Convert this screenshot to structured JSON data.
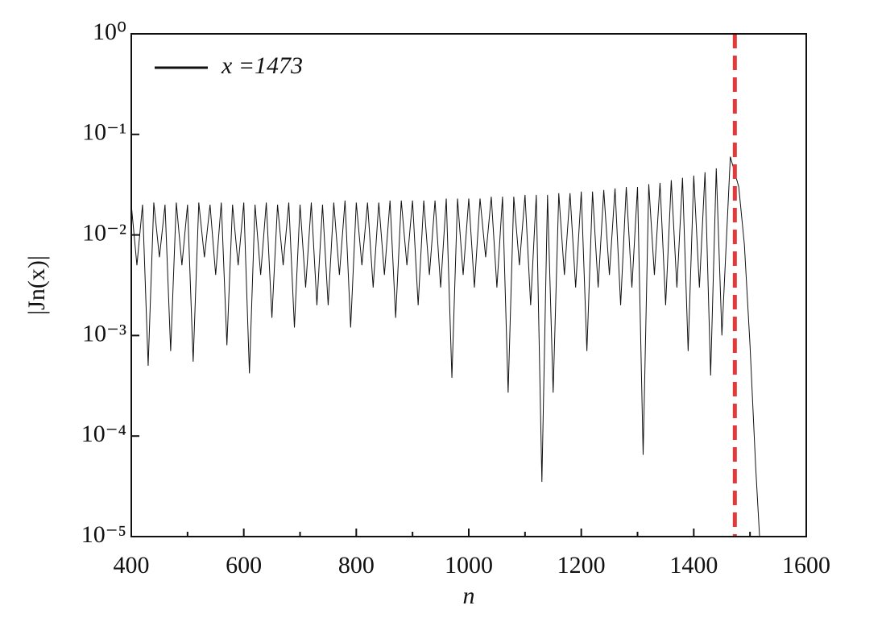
{
  "chart_data": {
    "type": "line",
    "log_y": true,
    "xlabel": "n",
    "ylabel": "|Jn(x)|",
    "xlim": [
      400,
      1600
    ],
    "xticks": [
      400,
      600,
      800,
      1000,
      1200,
      1400,
      1600
    ],
    "xminorticks": [
      500,
      700,
      900,
      1100,
      1300,
      1500
    ],
    "ylim": [
      1e-05,
      1
    ],
    "yticks": [
      {
        "value": 1e-05,
        "label": "10⁻⁵"
      },
      {
        "value": 0.0001,
        "label": "10⁻⁴"
      },
      {
        "value": 0.001,
        "label": "10⁻³"
      },
      {
        "value": 0.01,
        "label": "10⁻²"
      },
      {
        "value": 0.1,
        "label": "10⁻¹"
      },
      {
        "value": 1,
        "label": "10⁰"
      }
    ],
    "legend": "upper left",
    "vline": {
      "x": 1473,
      "color": "#e03a3a"
    },
    "x": [
      400,
      410,
      420,
      430,
      440,
      450,
      460,
      470,
      480,
      490,
      500,
      510,
      520,
      530,
      540,
      550,
      560,
      570,
      580,
      590,
      600,
      610,
      620,
      630,
      640,
      650,
      660,
      670,
      680,
      690,
      700,
      710,
      720,
      730,
      740,
      750,
      760,
      770,
      780,
      790,
      800,
      810,
      820,
      830,
      840,
      850,
      860,
      870,
      880,
      890,
      900,
      910,
      920,
      930,
      940,
      950,
      960,
      970,
      980,
      990,
      1000,
      1010,
      1020,
      1030,
      1040,
      1050,
      1060,
      1070,
      1080,
      1090,
      1100,
      1110,
      1120,
      1130,
      1140,
      1150,
      1160,
      1170,
      1180,
      1190,
      1200,
      1210,
      1220,
      1230,
      1240,
      1250,
      1260,
      1270,
      1280,
      1290,
      1300,
      1310,
      1320,
      1330,
      1340,
      1350,
      1360,
      1370,
      1380,
      1390,
      1400,
      1410,
      1420,
      1430,
      1440,
      1450,
      1465,
      1480,
      1490,
      1500,
      1510,
      1517
    ],
    "series": [
      {
        "name": "x =1473",
        "color": "#111111",
        "values": [
          0.02,
          0.005,
          0.02,
          0.0005,
          0.021,
          0.006,
          0.02,
          0.0007,
          0.021,
          0.005,
          0.02,
          0.00055,
          0.021,
          0.006,
          0.02,
          0.004,
          0.021,
          0.0008,
          0.02,
          0.005,
          0.021,
          0.00042,
          0.02,
          0.004,
          0.021,
          0.0015,
          0.02,
          0.005,
          0.021,
          0.0012,
          0.02,
          0.003,
          0.021,
          0.002,
          0.02,
          0.002,
          0.021,
          0.004,
          0.022,
          0.0012,
          0.021,
          0.005,
          0.021,
          0.003,
          0.021,
          0.004,
          0.022,
          0.0015,
          0.022,
          0.005,
          0.022,
          0.002,
          0.022,
          0.004,
          0.022,
          0.003,
          0.023,
          0.00038,
          0.023,
          0.004,
          0.023,
          0.003,
          0.023,
          0.006,
          0.024,
          0.003,
          0.024,
          0.00027,
          0.024,
          0.005,
          0.025,
          0.002,
          0.025,
          3.5e-05,
          0.025,
          0.00027,
          0.026,
          0.004,
          0.026,
          0.003,
          0.027,
          0.0007,
          0.027,
          0.003,
          0.028,
          0.004,
          0.029,
          0.002,
          0.03,
          0.003,
          0.03,
          6.5e-05,
          0.032,
          0.004,
          0.033,
          0.002,
          0.035,
          0.003,
          0.037,
          0.0007,
          0.039,
          0.003,
          0.042,
          0.0004,
          0.046,
          0.001,
          0.06,
          0.03,
          0.008,
          0.0008,
          5e-05,
          1e-05
        ]
      }
    ]
  }
}
